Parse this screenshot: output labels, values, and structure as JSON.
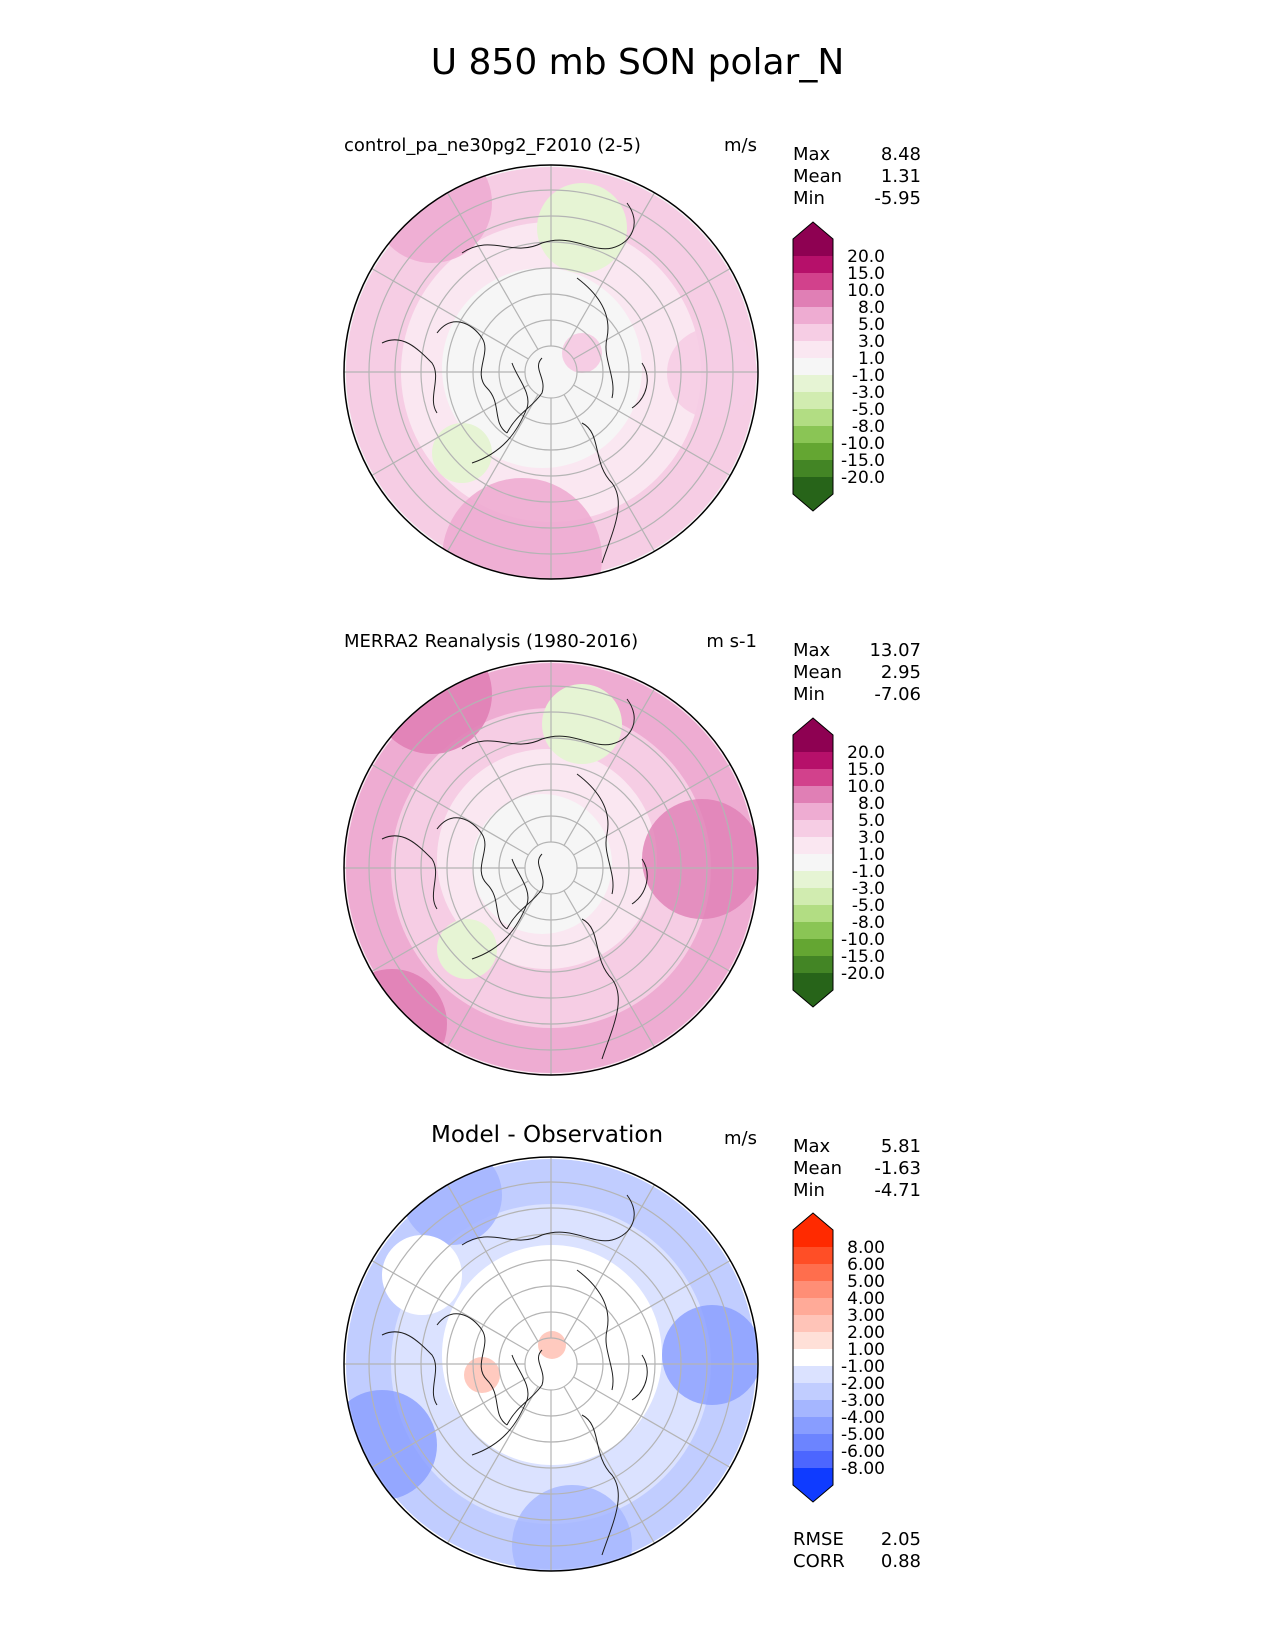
{
  "figure_title": "U 850 mb SON polar_N",
  "stat_labels": {
    "max": "Max",
    "mean": "Mean",
    "min": "Min"
  },
  "panels": [
    {
      "id": "model",
      "title": "control_pa_ne30pg2_F2010 (2-5)",
      "units": "m/s",
      "stats": {
        "max": "8.48",
        "mean": "1.31",
        "min": "-5.95"
      },
      "colorbar": "wind"
    },
    {
      "id": "obs",
      "title": "MERRA2 Reanalysis (1980-2016)",
      "units": "m s-1",
      "stats": {
        "max": "13.07",
        "mean": "2.95",
        "min": "-7.06"
      },
      "colorbar": "wind"
    },
    {
      "id": "diff",
      "title": "Model - Observation",
      "units": "m/s",
      "stats": {
        "max": "5.81",
        "mean": "-1.63",
        "min": "-4.71"
      },
      "colorbar": "diff"
    }
  ],
  "metrics": {
    "rmse_label": "RMSE",
    "rmse": "2.05",
    "corr_label": "CORR",
    "corr": "0.88"
  },
  "chart_data": {
    "type": "heatmap",
    "projection": "north polar stereographic",
    "variable": "U 850 mb",
    "season": "SON",
    "colorbars": {
      "wind": {
        "ticks": [
          "20.0",
          "15.0",
          "10.0",
          "8.0",
          "5.0",
          "3.0",
          "1.0",
          "-1.0",
          "-3.0",
          "-5.0",
          "-8.0",
          "-10.0",
          "-15.0",
          "-20.0"
        ],
        "colors": [
          "#8e0152",
          "#b6106a",
          "#d2418c",
          "#e07fb5",
          "#eeacd2",
          "#f6cde4",
          "#fae7f1",
          "#f6f6f6",
          "#e6f4d4",
          "#d1ecb0",
          "#b2dd83",
          "#8ac555",
          "#64a632",
          "#438525",
          "#276419"
        ]
      },
      "diff": {
        "ticks": [
          "8.00",
          "6.00",
          "5.00",
          "4.00",
          "3.00",
          "2.00",
          "1.00",
          "-1.00",
          "-2.00",
          "-3.00",
          "-4.00",
          "-5.00",
          "-6.00",
          "-8.00"
        ],
        "colors": [
          "#ff2a00",
          "#ff4e26",
          "#ff6e4d",
          "#ff8e76",
          "#ffaa98",
          "#ffc4b8",
          "#ffe0d8",
          "#ffffff",
          "#dbe2ff",
          "#c1cdff",
          "#a5b6ff",
          "#889dff",
          "#6c84ff",
          "#4c66ff",
          "#0f3bff"
        ]
      }
    }
  }
}
